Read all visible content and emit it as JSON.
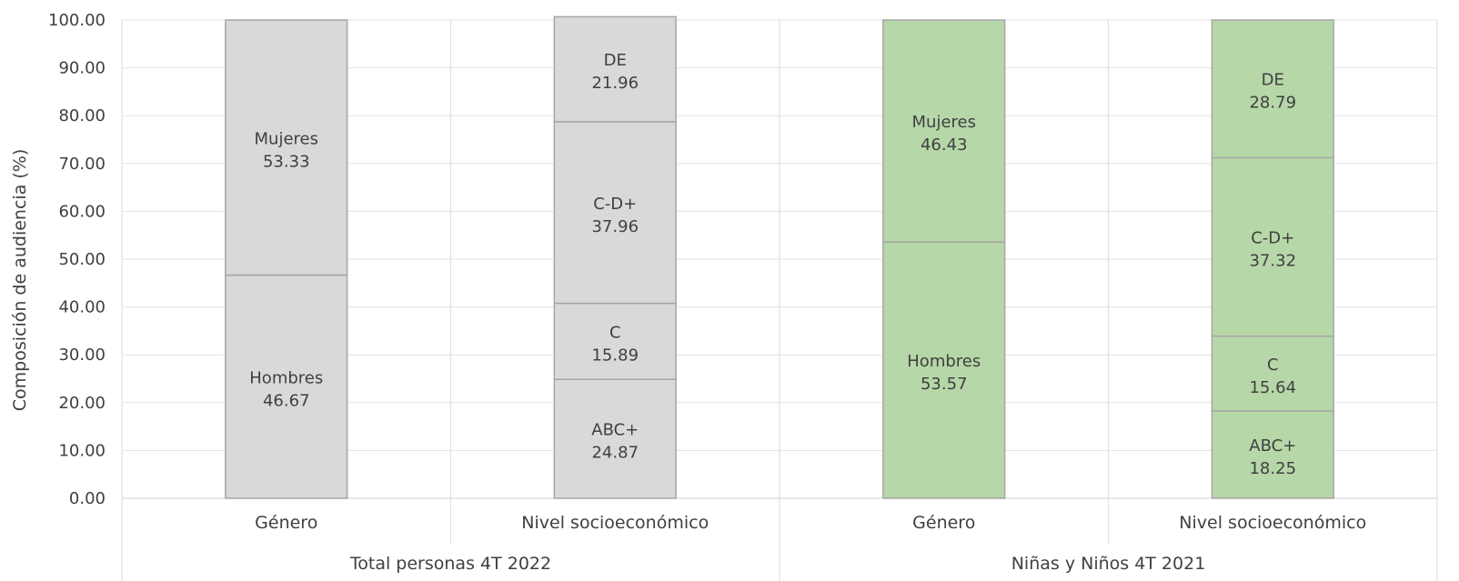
{
  "chart_data": {
    "type": "bar",
    "stacked": true,
    "ylabel": "Composición de audiencia (%)",
    "ylim": [
      0,
      100
    ],
    "y_ticks": [
      "0.00",
      "10.00",
      "20.00",
      "30.00",
      "40.00",
      "50.00",
      "60.00",
      "70.00",
      "80.00",
      "90.00",
      "100.00"
    ],
    "grid": true,
    "groups": [
      {
        "name": "Total personas 4T 2022",
        "color": "#d9d9d9",
        "categories": [
          {
            "name": "Género",
            "segments": [
              {
                "label": "Hombres",
                "value": 46.67,
                "value_text": "46.67"
              },
              {
                "label": "Mujeres",
                "value": 53.33,
                "value_text": "53.33"
              }
            ]
          },
          {
            "name": "Nivel socioeconómico",
            "segments": [
              {
                "label": "ABC+",
                "value": 24.87,
                "value_text": "24.87"
              },
              {
                "label": "C",
                "value": 15.89,
                "value_text": "15.89"
              },
              {
                "label": "C-D+",
                "value": 37.96,
                "value_text": "37.96"
              },
              {
                "label": "DE",
                "value": 21.96,
                "value_text": "21.96"
              }
            ]
          }
        ]
      },
      {
        "name": "Niñas y Niños 4T 2021",
        "color": "#b6d7a8",
        "categories": [
          {
            "name": "Género",
            "segments": [
              {
                "label": "Hombres",
                "value": 53.57,
                "value_text": "53.57"
              },
              {
                "label": "Mujeres",
                "value": 46.43,
                "value_text": "46.43"
              }
            ]
          },
          {
            "name": "Nivel socioeconómico",
            "segments": [
              {
                "label": "ABC+",
                "value": 18.25,
                "value_text": "18.25"
              },
              {
                "label": "C",
                "value": 15.64,
                "value_text": "15.64"
              },
              {
                "label": "C-D+",
                "value": 37.32,
                "value_text": "37.32"
              },
              {
                "label": "DE",
                "value": 28.79,
                "value_text": "28.79"
              }
            ]
          }
        ]
      }
    ]
  }
}
